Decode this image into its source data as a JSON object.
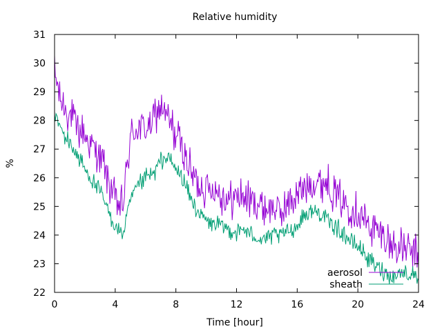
{
  "chart_data": {
    "type": "line",
    "title": "Relative humidity",
    "xlabel": "Time [hour]",
    "ylabel": "%",
    "xlim": [
      0,
      24
    ],
    "ylim": [
      22,
      31
    ],
    "xticks": [
      0,
      4,
      8,
      12,
      16,
      20,
      24
    ],
    "yticks": [
      22,
      23,
      24,
      25,
      26,
      27,
      28,
      29,
      30,
      31
    ],
    "grid": false,
    "legend_position": "bottom-right",
    "series": [
      {
        "name": "aerosol",
        "color": "#9400d3",
        "x": [
          0,
          0.5,
          1,
          1.5,
          2,
          2.5,
          3,
          3.5,
          4,
          4.5,
          5,
          5.5,
          6,
          6.5,
          7,
          7.5,
          8,
          8.5,
          9,
          9.5,
          10,
          10.5,
          11,
          11.5,
          12,
          12.5,
          13,
          13.5,
          14,
          14.5,
          15,
          15.5,
          16,
          16.5,
          17,
          17.5,
          18,
          18.5,
          19,
          19.5,
          20,
          20.5,
          21,
          21.5,
          22,
          22.5,
          23,
          23.5,
          24
        ],
        "values": [
          29.6,
          28.6,
          28.2,
          27.7,
          27.5,
          27.1,
          26.8,
          26.0,
          25.2,
          25.0,
          27.4,
          27.8,
          27.7,
          28.0,
          28.6,
          28.0,
          27.5,
          27.0,
          26.2,
          25.8,
          25.6,
          25.7,
          25.4,
          25.2,
          25.3,
          25.4,
          25.2,
          25.1,
          25.0,
          24.9,
          24.8,
          25.2,
          25.3,
          25.7,
          25.8,
          25.9,
          25.8,
          25.4,
          25.2,
          25.0,
          24.8,
          24.5,
          24.2,
          24.0,
          23.8,
          23.6,
          23.5,
          23.4,
          23.3
        ]
      },
      {
        "name": "sheath",
        "color": "#009e73",
        "x": [
          0,
          0.5,
          1,
          1.5,
          2,
          2.5,
          3,
          3.5,
          4,
          4.5,
          5,
          5.5,
          6,
          6.5,
          7,
          7.5,
          8,
          8.5,
          9,
          9.5,
          10,
          10.5,
          11,
          11.5,
          12,
          12.5,
          13,
          13.5,
          14,
          14.5,
          15,
          15.5,
          16,
          16.5,
          17,
          17.5,
          18,
          18.5,
          19,
          19.5,
          20,
          20.5,
          21,
          21.5,
          22,
          22.5,
          23,
          23.5,
          24
        ],
        "values": [
          28.2,
          27.6,
          27.2,
          26.8,
          26.3,
          25.9,
          25.5,
          24.9,
          24.3,
          24.0,
          25.2,
          25.7,
          26.0,
          26.1,
          26.6,
          26.7,
          26.3,
          25.9,
          25.2,
          24.8,
          24.5,
          24.4,
          24.3,
          24.2,
          24.1,
          24.2,
          24.0,
          23.9,
          23.9,
          24.0,
          24.0,
          24.2,
          24.3,
          24.7,
          24.8,
          24.8,
          24.5,
          24.3,
          24.1,
          23.8,
          23.6,
          23.3,
          23.0,
          22.8,
          22.6,
          22.6,
          22.7,
          22.6,
          22.6
        ]
      }
    ]
  }
}
